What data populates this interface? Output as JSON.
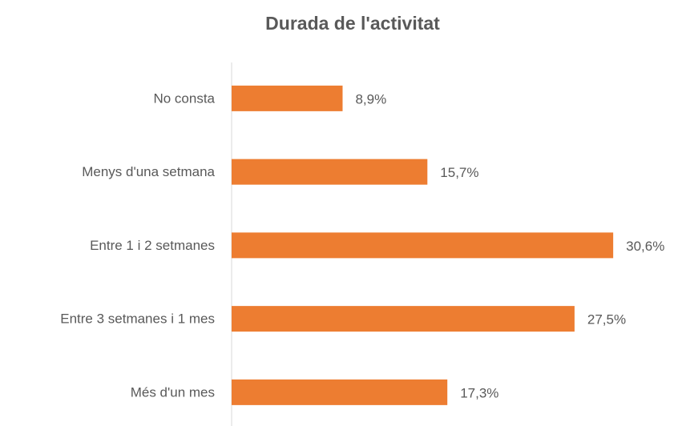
{
  "chart_data": {
    "type": "bar",
    "orientation": "horizontal",
    "title": "Durada de l'activitat",
    "categories": [
      "No consta",
      "Menys d'una setmana",
      "Entre 1 i 2 setmanes",
      "Entre 3 setmanes i 1 mes",
      "Més d'un mes"
    ],
    "values": [
      8.9,
      15.7,
      30.6,
      27.5,
      17.3
    ],
    "value_labels": [
      "8,9%",
      "15,7%",
      "30,6%",
      "27,5%",
      "17,3%"
    ],
    "color": "#ED7D31"
  }
}
